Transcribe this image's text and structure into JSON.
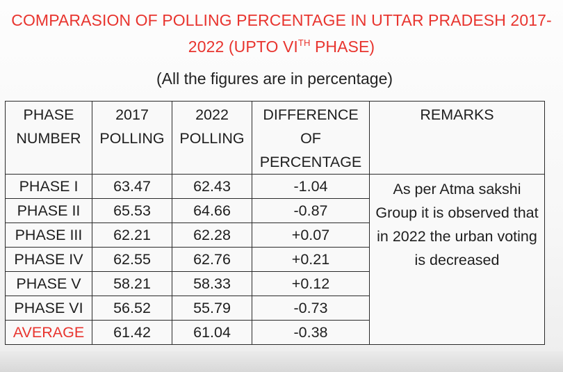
{
  "title": {
    "line1": "COMPARASION OF POLLING PERCENTAGE IN UTTAR PRADESH 2017-",
    "line2_pre": "2022 (UPTO VI",
    "line2_sup": "TH",
    "line2_post": " PHASE)"
  },
  "subtitle": "(All the figures are in percentage)",
  "colors": {
    "title": "#e8342e",
    "average_label": "#e8342e",
    "text": "#1e1e1e",
    "border": "#2a2a2a"
  },
  "table": {
    "headers": {
      "phase": [
        "PHASE",
        "NUMBER"
      ],
      "y2017": [
        "2017",
        "POLLING"
      ],
      "y2022": [
        "2022",
        "POLLING"
      ],
      "difference": [
        "DIFFERENCE",
        "OF",
        "PERCENTAGE"
      ],
      "remarks": "REMARKS"
    },
    "rows": [
      {
        "phase": "PHASE I",
        "y2017": "63.47",
        "y2022": "62.43",
        "diff": "-1.04"
      },
      {
        "phase": "PHASE II",
        "y2017": "65.53",
        "y2022": "64.66",
        "diff": "-0.87"
      },
      {
        "phase": "PHASE III",
        "y2017": "62.21",
        "y2022": "62.28",
        "diff": "+0.07"
      },
      {
        "phase": "PHASE IV",
        "y2017": "62.55",
        "y2022": "62.76",
        "diff": "+0.21"
      },
      {
        "phase": "PHASE V",
        "y2017": "58.21",
        "y2022": "58.33",
        "diff": "+0.12"
      },
      {
        "phase": "PHASE VI",
        "y2017": "56.52",
        "y2022": "55.79",
        "diff": "-0.73"
      }
    ],
    "average": {
      "phase": "AVERAGE",
      "y2017": "61.42",
      "y2022": "61.04",
      "diff": "-0.38"
    },
    "remarks_text": "As per Atma sakshi Group it is observed that in 2022 the urban voting is decreased"
  }
}
